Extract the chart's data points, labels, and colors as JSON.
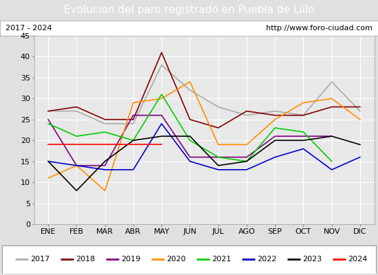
{
  "title": "Evolucion del paro registrado en Puebla de Lillo",
  "subtitle_left": "2017 - 2024",
  "subtitle_right": "http://www.foro-ciudad.com",
  "months": [
    "ENE",
    "FEB",
    "MAR",
    "ABR",
    "MAY",
    "JUN",
    "JUL",
    "AGO",
    "SEP",
    "OCT",
    "NOV",
    "DIC"
  ],
  "series": {
    "2017": {
      "color": "#aaaaaa",
      "values": [
        27,
        27,
        24,
        24,
        38,
        32,
        28,
        26,
        27,
        26,
        34,
        27
      ]
    },
    "2018": {
      "color": "#800000",
      "values": [
        27,
        28,
        25,
        25,
        41,
        25,
        23,
        27,
        26,
        26,
        28,
        28
      ]
    },
    "2019": {
      "color": "#800080",
      "values": [
        25,
        14,
        14,
        26,
        26,
        16,
        16,
        16,
        21,
        21,
        21,
        null
      ]
    },
    "2020": {
      "color": "#ff8c00",
      "values": [
        11,
        14,
        8,
        29,
        30,
        34,
        19,
        19,
        25,
        29,
        30,
        25
      ]
    },
    "2021": {
      "color": "#00cc00",
      "values": [
        24,
        21,
        22,
        20,
        31,
        20,
        16,
        15,
        23,
        22,
        15,
        null
      ]
    },
    "2022": {
      "color": "#0000cc",
      "values": [
        15,
        14,
        13,
        13,
        24,
        15,
        13,
        13,
        16,
        18,
        13,
        16
      ]
    },
    "2023": {
      "color": "#000000",
      "values": [
        15,
        8,
        15,
        20,
        21,
        21,
        14,
        15,
        20,
        20,
        21,
        19
      ]
    },
    "2024": {
      "color": "#ff0000",
      "values": [
        19,
        19,
        19,
        19,
        19,
        null,
        null,
        null,
        null,
        null,
        null,
        null
      ]
    }
  },
  "ylim": [
    0,
    45
  ],
  "yticks": [
    0,
    5,
    10,
    15,
    20,
    25,
    30,
    35,
    40,
    45
  ],
  "title_background": "#4472c4",
  "title_color": "#ffffff",
  "title_fontsize": 11,
  "subtitle_fontsize": 8,
  "tick_fontsize": 8,
  "legend_fontsize": 8,
  "plot_bg": "#e8e8e8",
  "fig_bg": "#e0e0e0"
}
